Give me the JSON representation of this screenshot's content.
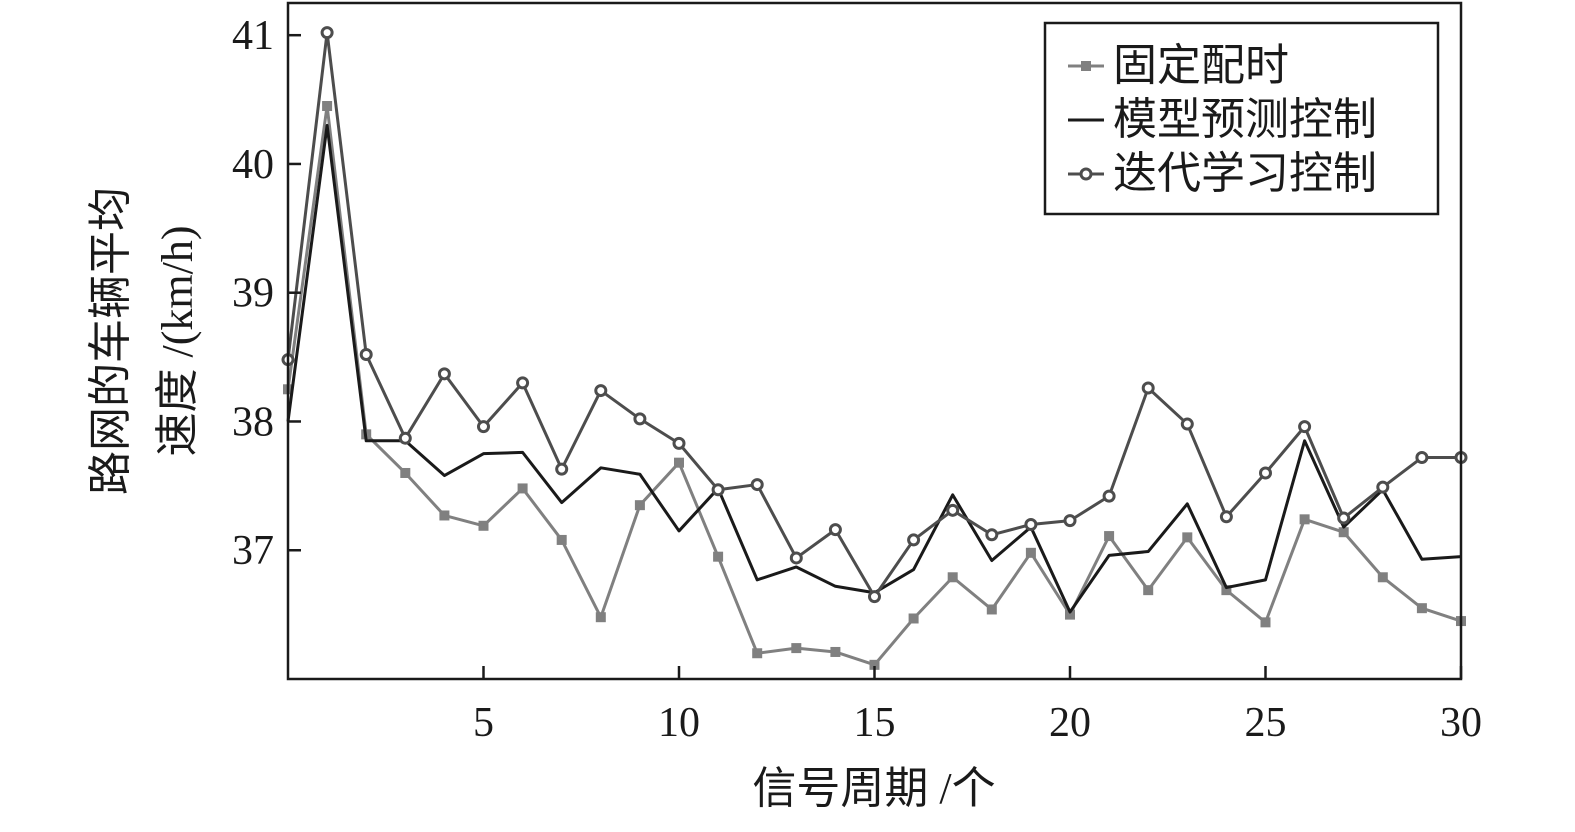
{
  "chart_data": {
    "type": "line",
    "xlabel": "信号周期 /个",
    "ylabel_line1": "路网的车辆平均",
    "ylabel_line2": "速度 /(km/h)",
    "xlim": [
      0,
      30
    ],
    "ylim": [
      36.0,
      41.25
    ],
    "xticks": [
      5,
      10,
      15,
      20,
      25,
      30
    ],
    "yticks": [
      37,
      38,
      39,
      40,
      41
    ],
    "grid": false,
    "legend_position": "top-right",
    "x": [
      0,
      1,
      2,
      3,
      4,
      5,
      6,
      7,
      8,
      9,
      10,
      11,
      12,
      13,
      14,
      15,
      16,
      17,
      18,
      19,
      20,
      21,
      22,
      23,
      24,
      25,
      26,
      27,
      28,
      29,
      30
    ],
    "series": [
      {
        "name": "固定配时",
        "color": "#808080",
        "marker": "square",
        "values": [
          38.25,
          40.45,
          37.9,
          37.6,
          37.27,
          37.19,
          37.48,
          37.08,
          36.48,
          37.35,
          37.68,
          36.95,
          36.2,
          36.24,
          36.21,
          36.11,
          36.47,
          36.79,
          36.54,
          36.98,
          36.5,
          37.11,
          36.69,
          37.1,
          36.69,
          36.44,
          37.24,
          37.14,
          36.79,
          36.55,
          36.45
        ]
      },
      {
        "name": "模型预测控制",
        "color": "#1a1a1a",
        "marker": "none",
        "values": [
          38.0,
          40.3,
          37.85,
          37.85,
          37.58,
          37.75,
          37.76,
          37.37,
          37.64,
          37.59,
          37.15,
          37.48,
          36.77,
          36.87,
          36.72,
          36.67,
          36.85,
          37.43,
          36.92,
          37.18,
          36.52,
          36.96,
          36.99,
          37.36,
          36.71,
          36.77,
          37.85,
          37.18,
          37.47,
          36.93,
          36.95
        ]
      },
      {
        "name": "迭代学习控制",
        "color": "#4d4d4d",
        "marker": "circle",
        "values": [
          38.48,
          41.02,
          38.52,
          37.87,
          38.37,
          37.96,
          38.3,
          37.63,
          38.24,
          38.02,
          37.83,
          37.47,
          37.51,
          36.94,
          37.16,
          36.64,
          37.08,
          37.31,
          37.12,
          37.2,
          37.23,
          37.42,
          38.26,
          37.98,
          37.26,
          37.6,
          37.96,
          37.25,
          37.49,
          37.72,
          37.72
        ]
      }
    ]
  }
}
